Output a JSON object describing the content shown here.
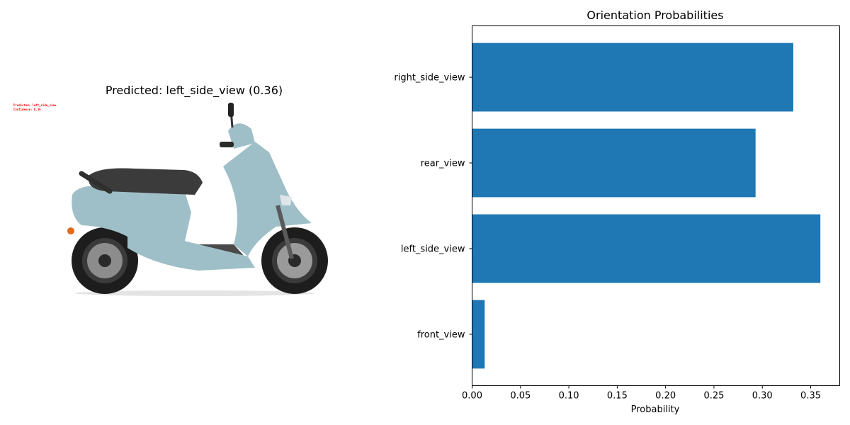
{
  "left_panel": {
    "title": "Predicted: left_side_view (0.36)",
    "overlay_line1": "Predicted: left_side_view",
    "overlay_line2": "Confidence: 0.36",
    "overlay_color": "#ff0000",
    "scooter_color": "#9fbfc8"
  },
  "chart_data": {
    "type": "bar",
    "orientation": "horizontal",
    "title": "Orientation Probabilities",
    "xlabel": "Probability",
    "ylabel": "",
    "categories": [
      "front_view",
      "left_side_view",
      "rear_view",
      "right_side_view"
    ],
    "values": [
      0.013,
      0.36,
      0.293,
      0.332
    ],
    "xlim": [
      0,
      0.38
    ],
    "xticks": [
      0.0,
      0.05,
      0.1,
      0.15,
      0.2,
      0.25,
      0.3,
      0.35
    ],
    "xtick_labels": [
      "0.00",
      "0.05",
      "0.10",
      "0.15",
      "0.20",
      "0.25",
      "0.30",
      "0.35"
    ],
    "bar_color": "#1f77b4",
    "grid": false,
    "legend": "none"
  }
}
